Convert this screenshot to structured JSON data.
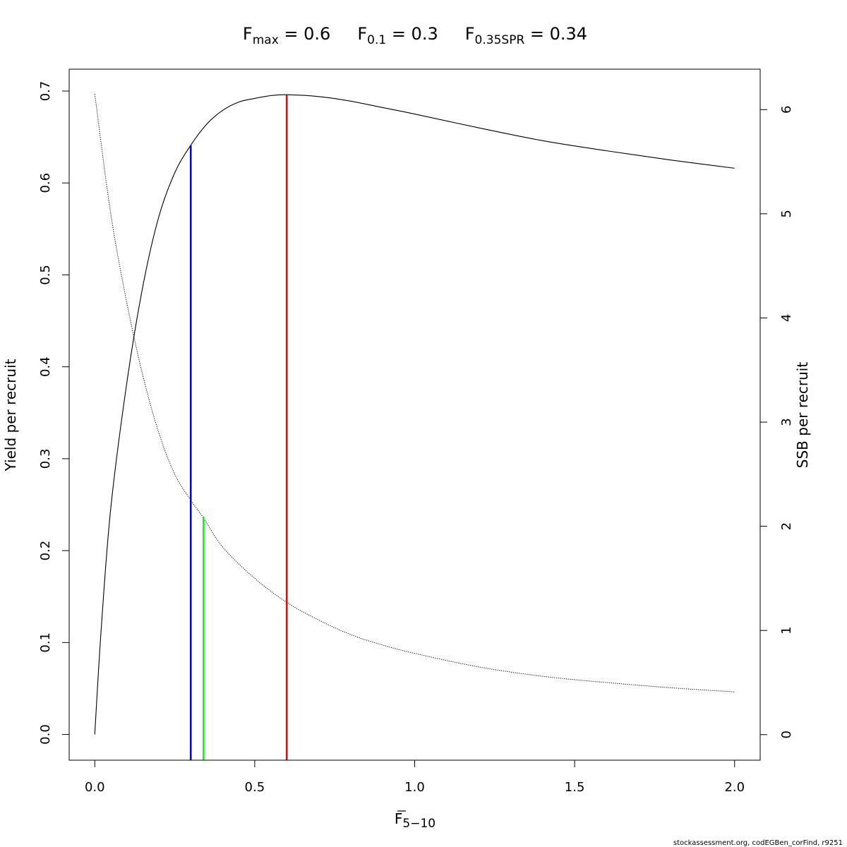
{
  "chart_data": {
    "type": "line",
    "title_parts": [
      {
        "symbol": "F",
        "subscript": "max",
        "rest": " = 0.6"
      },
      {
        "symbol": "F",
        "subscript": "0.1",
        "rest": " = 0.3"
      },
      {
        "symbol": "F",
        "subscript": "0.35SPR",
        "rest": " = 0.34"
      }
    ],
    "xlabel": {
      "symbol": "F",
      "subscript": "5−10"
    },
    "ylabel": "Yield per recruit",
    "y2label": "SSB per recruit",
    "xlim": [
      -0.08,
      2.08
    ],
    "ylim": [
      -0.028,
      0.7238
    ],
    "y2lim": [
      -0.2455,
      6.3883
    ],
    "xticks": [
      0.0,
      0.5,
      1.0,
      1.5,
      2.0
    ],
    "xtick_labels": [
      "0.0",
      "0.5",
      "1.0",
      "1.5",
      "2.0"
    ],
    "yticks": [
      0.0,
      0.1,
      0.2,
      0.3,
      0.4,
      0.5,
      0.6,
      0.7
    ],
    "ytick_labels": [
      "0.0",
      "0.1",
      "0.2",
      "0.3",
      "0.4",
      "0.5",
      "0.6",
      "0.7"
    ],
    "y2ticks": [
      0,
      1,
      2,
      3,
      4,
      5,
      6
    ],
    "y2tick_labels": [
      "0",
      "1",
      "2",
      "3",
      "4",
      "5",
      "6"
    ],
    "series": [
      {
        "axis": "left",
        "style": "solid",
        "color": "#000000",
        "x": [
          0.0,
          0.02,
          0.05,
          0.1,
          0.15,
          0.2,
          0.25,
          0.3,
          0.35,
          0.4,
          0.45,
          0.5,
          0.55,
          0.6,
          0.7,
          0.8,
          0.9,
          1.0,
          1.2,
          1.4,
          1.6,
          1.8,
          2.0
        ],
        "y": [
          0.0,
          0.114,
          0.246,
          0.382,
          0.487,
          0.563,
          0.611,
          0.641,
          0.664,
          0.679,
          0.688,
          0.692,
          0.695,
          0.696,
          0.694,
          0.689,
          0.682,
          0.675,
          0.66,
          0.646,
          0.635,
          0.625,
          0.616
        ]
      },
      {
        "axis": "right",
        "style": "dotted",
        "color": "#000000",
        "x": [
          0.0,
          0.05,
          0.1,
          0.15,
          0.2,
          0.25,
          0.3,
          0.34,
          0.4,
          0.5,
          0.6,
          0.7,
          0.8,
          0.9,
          1.0,
          1.2,
          1.4,
          1.6,
          1.8,
          2.0
        ],
        "y": [
          6.15,
          5.0,
          4.15,
          3.45,
          2.9,
          2.5,
          2.25,
          2.08,
          1.8,
          1.5,
          1.27,
          1.1,
          0.96,
          0.86,
          0.78,
          0.65,
          0.56,
          0.5,
          0.45,
          0.41
        ]
      }
    ],
    "reference_lines": [
      {
        "name": "Fmax",
        "x": 0.6,
        "y_top": 0.696,
        "color": "#ff0000"
      },
      {
        "name": "F0.1",
        "x": 0.3,
        "y_top": 0.641,
        "color": "#0000ff"
      },
      {
        "name": "F0.35SPR",
        "x": 0.34,
        "y_top": 0.237,
        "color": "#00ff00"
      }
    ],
    "grid": false,
    "legend": "none"
  },
  "footer": "stockassessment.org, codEGBen_corFind, r9251"
}
